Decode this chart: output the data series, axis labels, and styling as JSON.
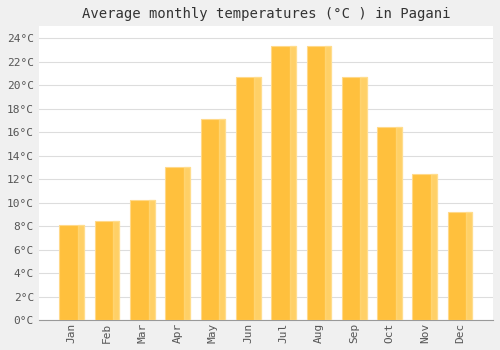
{
  "title": "Average monthly temperatures (°C ) in Pagani",
  "months": [
    "Jan",
    "Feb",
    "Mar",
    "Apr",
    "May",
    "Jun",
    "Jul",
    "Aug",
    "Sep",
    "Oct",
    "Nov",
    "Dec"
  ],
  "values": [
    8.1,
    8.4,
    10.2,
    13.0,
    17.1,
    20.7,
    23.3,
    23.3,
    20.7,
    16.4,
    12.4,
    9.2
  ],
  "bar_color_face": "#FFC03D",
  "bar_color_edge": "#FFD98A",
  "ylim": [
    0,
    25
  ],
  "yticks": [
    0,
    2,
    4,
    6,
    8,
    10,
    12,
    14,
    16,
    18,
    20,
    22,
    24
  ],
  "ytick_labels": [
    "0°C",
    "2°C",
    "4°C",
    "6°C",
    "8°C",
    "10°C",
    "12°C",
    "14°C",
    "16°C",
    "18°C",
    "20°C",
    "22°C",
    "24°C"
  ],
  "plot_bg_color": "#ffffff",
  "fig_bg_color": "#f0f0f0",
  "grid_color": "#dddddd",
  "title_fontsize": 10,
  "tick_fontsize": 8,
  "title_color": "#333333",
  "tick_color": "#555555"
}
